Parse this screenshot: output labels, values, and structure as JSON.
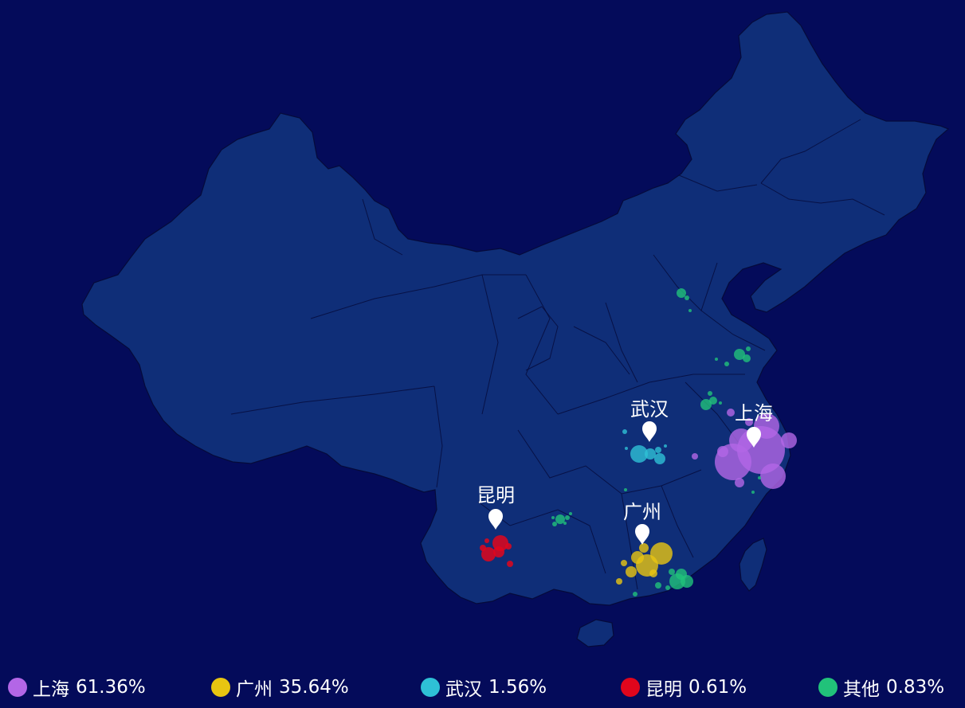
{
  "colors": {
    "background": "#040b5a",
    "land": "#0f2e78",
    "border": "#050a3a"
  },
  "hubs": [
    {
      "id": "shanghai",
      "label": "上海",
      "color": "#b366e6"
    },
    {
      "id": "guangzhou",
      "label": "广州",
      "color": "#e8c511"
    },
    {
      "id": "wuhan",
      "label": "武汉",
      "color": "#2ec0d6"
    },
    {
      "id": "kunming",
      "label": "昆明",
      "color": "#e0061c"
    }
  ],
  "legend": [
    {
      "name": "上海",
      "percent": "61.36%",
      "color": "#b366e6"
    },
    {
      "name": "广州",
      "percent": "35.64%",
      "color": "#e8c511"
    },
    {
      "name": "武汉",
      "percent": "1.56%",
      "color": "#2ec0d6"
    },
    {
      "name": "昆明",
      "percent": "0.61%",
      "color": "#e0061c"
    },
    {
      "name": "其他",
      "percent": "0.83%",
      "color": "#21c27a"
    }
  ]
}
